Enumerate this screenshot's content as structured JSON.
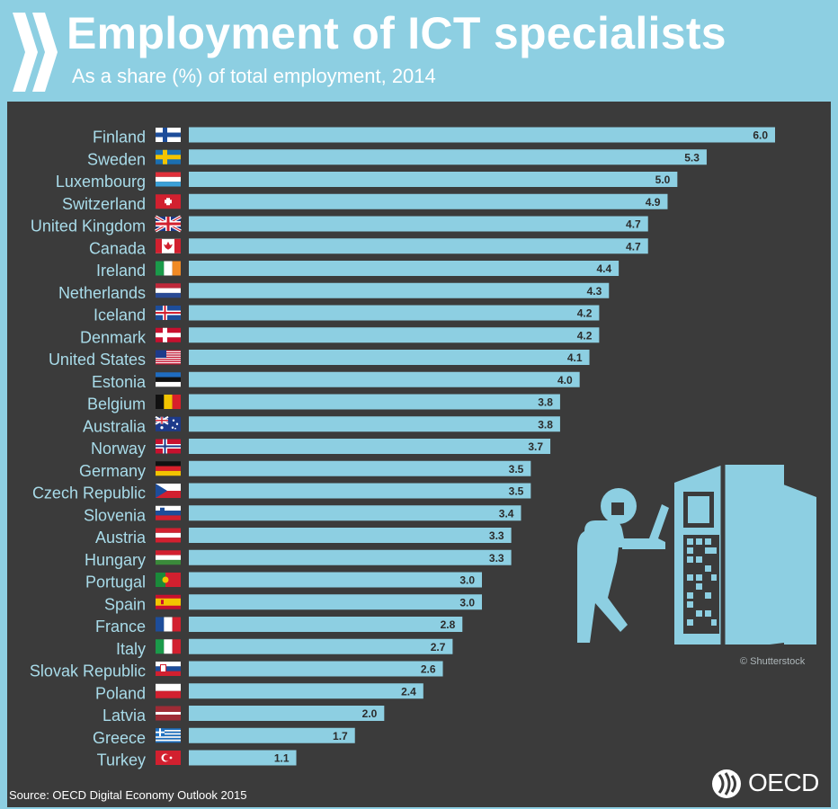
{
  "header": {
    "title": "Employment of ICT specialists",
    "subtitle": "As a share (%) of total employment, 2014"
  },
  "footer": {
    "source": "Source: OECD Digital Economy Outlook 2015",
    "credit": "© Shutterstock",
    "brand": "OECD"
  },
  "colors": {
    "background": "#8dcfe2",
    "panel": "#3b3b3b",
    "bar": "#8dcfe2",
    "label": "#a9dcea",
    "value_text": "#2b2b2b"
  },
  "chart_data": {
    "type": "bar",
    "orientation": "horizontal",
    "title": "Employment of ICT specialists",
    "subtitle": "As a share (%) of total employment, 2014",
    "xlabel": "",
    "ylabel": "",
    "xlim": [
      0,
      6
    ],
    "categories": [
      "Finland",
      "Sweden",
      "Luxembourg",
      "Switzerland",
      "United Kingdom",
      "Canada",
      "Ireland",
      "Netherlands",
      "Iceland",
      "Denmark",
      "United States",
      "Estonia",
      "Belgium",
      "Australia",
      "Norway",
      "Germany",
      "Czech Republic",
      "Slovenia",
      "Austria",
      "Hungary",
      "Portugal",
      "Spain",
      "France",
      "Italy",
      "Slovak Republic",
      "Poland",
      "Latvia",
      "Greece",
      "Turkey"
    ],
    "values": [
      6.0,
      5.3,
      5.0,
      4.9,
      4.7,
      4.7,
      4.4,
      4.3,
      4.2,
      4.2,
      4.1,
      4.0,
      3.8,
      3.8,
      3.7,
      3.5,
      3.5,
      3.4,
      3.3,
      3.3,
      3.0,
      3.0,
      2.8,
      2.7,
      2.6,
      2.4,
      2.0,
      1.7,
      1.1
    ],
    "value_labels": [
      "6.0",
      "5.3",
      "5.0",
      "4.9",
      "4.7",
      "4.7",
      "4.4",
      "4.3",
      "4.2",
      "4.2",
      "4.1",
      "4.0",
      "3.8",
      "3.8",
      "3.7",
      "3.5",
      "3.5",
      "3.4",
      "3.3",
      "3.3",
      "3.0",
      "3.0",
      "2.8",
      "2.7",
      "2.6",
      "2.4",
      "2.0",
      "1.7",
      "1.1"
    ],
    "flags": [
      "fi",
      "se",
      "lu",
      "ch",
      "gb",
      "ca",
      "ie",
      "nl",
      "is",
      "dk",
      "us",
      "ee",
      "be",
      "au",
      "no",
      "de",
      "cz",
      "si",
      "at",
      "hu",
      "pt",
      "es",
      "fr",
      "it",
      "sk",
      "pl",
      "lv",
      "gr",
      "tr"
    ],
    "grid": false,
    "legend": "none"
  }
}
